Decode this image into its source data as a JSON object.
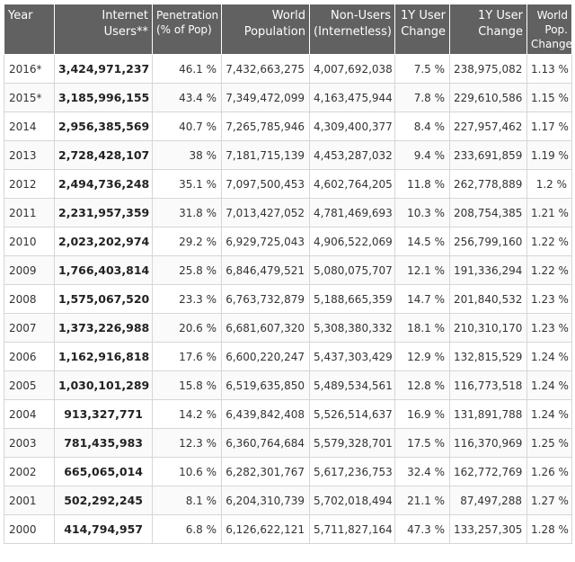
{
  "headers": {
    "year": "Year",
    "users": [
      "Internet",
      "Users**"
    ],
    "penetration": [
      "Penetration",
      "(% of Pop)"
    ],
    "world_pop": [
      "World",
      "Population"
    ],
    "non_users": [
      "Non-Users",
      "(Internetless)"
    ],
    "user_change_pct": [
      "1Y User",
      "Change"
    ],
    "user_change": [
      "1Y User",
      "Change"
    ],
    "pop_change": [
      "World",
      "Pop.",
      "Change"
    ]
  },
  "rows": [
    {
      "year": "2016*",
      "users": "3,424,971,237",
      "penetration": "46.1 %",
      "world_pop": "7,432,663,275",
      "non_users": "4,007,692,038",
      "user_change_pct": "7.5 %",
      "user_change": "238,975,082",
      "pop_change": "1.13 %"
    },
    {
      "year": "2015*",
      "users": "3,185,996,155",
      "penetration": "43.4 %",
      "world_pop": "7,349,472,099",
      "non_users": "4,163,475,944",
      "user_change_pct": "7.8 %",
      "user_change": "229,610,586",
      "pop_change": "1.15 %"
    },
    {
      "year": "2014",
      "users": "2,956,385,569",
      "penetration": "40.7 %",
      "world_pop": "7,265,785,946",
      "non_users": "4,309,400,377",
      "user_change_pct": "8.4 %",
      "user_change": "227,957,462",
      "pop_change": "1.17 %"
    },
    {
      "year": "2013",
      "users": "2,728,428,107",
      "penetration": "38 %",
      "world_pop": "7,181,715,139",
      "non_users": "4,453,287,032",
      "user_change_pct": "9.4 %",
      "user_change": "233,691,859",
      "pop_change": "1.19 %"
    },
    {
      "year": "2012",
      "users": "2,494,736,248",
      "penetration": "35.1 %",
      "world_pop": "7,097,500,453",
      "non_users": "4,602,764,205",
      "user_change_pct": "11.8 %",
      "user_change": "262,778,889",
      "pop_change": "1.2 %"
    },
    {
      "year": "2011",
      "users": "2,231,957,359",
      "penetration": "31.8 %",
      "world_pop": "7,013,427,052",
      "non_users": "4,781,469,693",
      "user_change_pct": "10.3 %",
      "user_change": "208,754,385",
      "pop_change": "1.21 %"
    },
    {
      "year": "2010",
      "users": "2,023,202,974",
      "penetration": "29.2 %",
      "world_pop": "6,929,725,043",
      "non_users": "4,906,522,069",
      "user_change_pct": "14.5 %",
      "user_change": "256,799,160",
      "pop_change": "1.22 %"
    },
    {
      "year": "2009",
      "users": "1,766,403,814",
      "penetration": "25.8 %",
      "world_pop": "6,846,479,521",
      "non_users": "5,080,075,707",
      "user_change_pct": "12.1 %",
      "user_change": "191,336,294",
      "pop_change": "1.22 %"
    },
    {
      "year": "2008",
      "users": "1,575,067,520",
      "penetration": "23.3 %",
      "world_pop": "6,763,732,879",
      "non_users": "5,188,665,359",
      "user_change_pct": "14.7 %",
      "user_change": "201,840,532",
      "pop_change": "1.23 %"
    },
    {
      "year": "2007",
      "users": "1,373,226,988",
      "penetration": "20.6 %",
      "world_pop": "6,681,607,320",
      "non_users": "5,308,380,332",
      "user_change_pct": "18.1 %",
      "user_change": "210,310,170",
      "pop_change": "1.23 %"
    },
    {
      "year": "2006",
      "users": "1,162,916,818",
      "penetration": "17.6 %",
      "world_pop": "6,600,220,247",
      "non_users": "5,437,303,429",
      "user_change_pct": "12.9 %",
      "user_change": "132,815,529",
      "pop_change": "1.24 %"
    },
    {
      "year": "2005",
      "users": "1,030,101,289",
      "penetration": "15.8 %",
      "world_pop": "6,519,635,850",
      "non_users": "5,489,534,561",
      "user_change_pct": "12.8 %",
      "user_change": "116,773,518",
      "pop_change": "1.24 %"
    },
    {
      "year": "2004",
      "users": "913,327,771",
      "penetration": "14.2 %",
      "world_pop": "6,439,842,408",
      "non_users": "5,526,514,637",
      "user_change_pct": "16.9 %",
      "user_change": "131,891,788",
      "pop_change": "1.24 %"
    },
    {
      "year": "2003",
      "users": "781,435,983",
      "penetration": "12.3 %",
      "world_pop": "6,360,764,684",
      "non_users": "5,579,328,701",
      "user_change_pct": "17.5 %",
      "user_change": "116,370,969",
      "pop_change": "1.25 %"
    },
    {
      "year": "2002",
      "users": "665,065,014",
      "penetration": "10.6 %",
      "world_pop": "6,282,301,767",
      "non_users": "5,617,236,753",
      "user_change_pct": "32.4 %",
      "user_change": "162,772,769",
      "pop_change": "1.26 %"
    },
    {
      "year": "2001",
      "users": "502,292,245",
      "penetration": "8.1 %",
      "world_pop": "6,204,310,739",
      "non_users": "5,702,018,494",
      "user_change_pct": "21.1 %",
      "user_change": "87,497,288",
      "pop_change": "1.27 %"
    },
    {
      "year": "2000",
      "users": "414,794,957",
      "penetration": "6.8 %",
      "world_pop": "6,126,622,121",
      "non_users": "5,711,827,164",
      "user_change_pct": "47.3 %",
      "user_change": "133,257,305",
      "pop_change": "1.28 %"
    }
  ]
}
